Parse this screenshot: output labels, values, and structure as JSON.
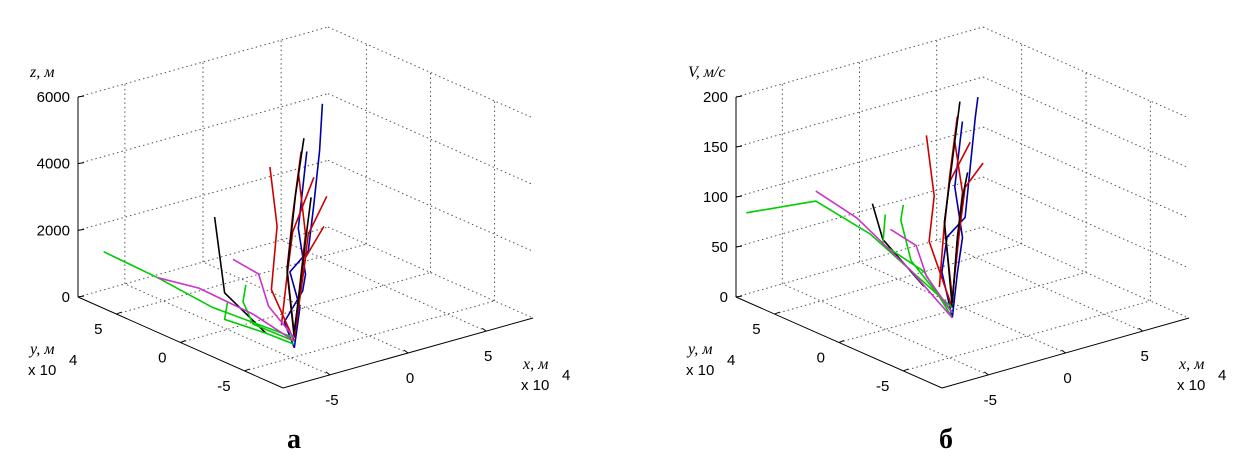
{
  "chart_data": [
    {
      "type": "line",
      "panel_label": "а",
      "zlabel": "z, м",
      "xlabel": "x, м",
      "ylabel": "y, м",
      "x_exponent": "x 10",
      "y_exponent": "x 10",
      "exponent_power": "4",
      "zlim": [
        0,
        6000
      ],
      "xlim": [
        -8,
        8
      ],
      "ylim": [
        -8,
        8
      ],
      "x_units": "x 10^4 m",
      "y_units": "x 10^4 m",
      "z_ticks": [
        "0",
        "2000",
        "4000",
        "6000"
      ],
      "x_ticks": [
        "-5",
        "0",
        "5"
      ],
      "y_ticks": [
        "5",
        "0",
        "-5"
      ],
      "grid": true,
      "series": [
        {
          "color": "#0000aa",
          "points": [
            [
              -4,
              -4,
              0
            ],
            [
              -2,
              -2,
              600
            ],
            [
              -1,
              0,
              1200
            ],
            [
              1,
              1,
              1400
            ],
            [
              3,
              3,
              2200
            ],
            [
              5,
              5,
              3200
            ],
            [
              6,
              6,
              4300
            ]
          ]
        },
        {
          "color": "#0000aa",
          "points": [
            [
              -4,
              -4,
              0
            ],
            [
              -3,
              -2,
              300
            ],
            [
              -1,
              -1,
              800
            ],
            [
              0,
              0,
              1000
            ],
            [
              2,
              3,
              1600
            ],
            [
              5,
              6,
              3000
            ]
          ]
        },
        {
          "color": "#cc0000",
          "points": [
            [
              -4,
              -4,
              400
            ],
            [
              -2,
              -1,
              1600
            ],
            [
              0,
              1,
              2600
            ],
            [
              3,
              4,
              3600
            ]
          ]
        },
        {
          "color": "#cc0000",
          "points": [
            [
              -4,
              -4,
              300
            ],
            [
              -2,
              -2,
              1300
            ],
            [
              0,
              0,
              2200
            ],
            [
              2,
              3,
              3300
            ]
          ]
        },
        {
          "color": "#cc0000",
          "points": [
            [
              -4,
              -3,
              500
            ],
            [
              -2,
              -1,
              1400
            ],
            [
              0,
              1,
              2100
            ],
            [
              3,
              3,
              3000
            ]
          ]
        },
        {
          "color": "#cc0000",
          "points": [
            [
              -4,
              -4,
              200
            ],
            [
              -3,
              -1,
              1100
            ],
            [
              -1,
              1,
              2400
            ],
            [
              1,
              4,
              3400
            ]
          ]
        },
        {
          "color": "#cc0000",
          "points": [
            [
              -4,
              -4,
              400
            ],
            [
              -1,
              -1,
              1200
            ],
            [
              1,
              1,
              1900
            ],
            [
              3,
              2,
              2600
            ]
          ]
        },
        {
          "color": "#cc0000",
          "points": [
            [
              -4,
              -4,
              300
            ],
            [
              -2,
              -2,
              900
            ],
            [
              0,
              0,
              1500
            ],
            [
              2,
              1,
              2000
            ]
          ]
        },
        {
          "color": "#000000",
          "points": [
            [
              -4,
              -4,
              300
            ],
            [
              -2,
              -1,
              1500
            ],
            [
              1,
              2,
              2900
            ],
            [
              4,
              5,
              3700
            ]
          ]
        },
        {
          "color": "#000000",
          "points": [
            [
              -4,
              -4,
              500
            ],
            [
              -2,
              -2,
              1200
            ],
            [
              0,
              0,
              2000
            ],
            [
              2,
              2,
              2700
            ]
          ]
        },
        {
          "color": "#000000",
          "points": [
            [
              -5,
              -3,
              400
            ],
            [
              -6,
              -1,
              1400
            ],
            [
              -5,
              1,
              3200
            ]
          ]
        },
        {
          "color": "#00cc00",
          "points": [
            [
              -4,
              -4,
              300
            ],
            [
              -6,
              0,
              800
            ],
            [
              -7,
              3,
              1300
            ],
            [
              -8,
              6,
              1700
            ]
          ]
        },
        {
          "color": "#00cc00",
          "points": [
            [
              -4,
              -4,
              200
            ],
            [
              -5,
              -2,
              500
            ],
            [
              -4,
              0,
              700
            ],
            [
              -3,
              1,
              900
            ]
          ]
        },
        {
          "color": "#00cc00",
          "points": [
            [
              -4,
              -4,
              100
            ],
            [
              -5,
              -3,
              400
            ],
            [
              -6,
              -1,
              600
            ],
            [
              -5,
              0,
              800
            ]
          ]
        },
        {
          "color": "#cc33cc",
          "points": [
            [
              -4,
              -4,
              200
            ],
            [
              -5,
              -2,
              800
            ],
            [
              -6,
              1,
              1200
            ],
            [
              -7,
              3,
              1300
            ]
          ]
        },
        {
          "color": "#cc33cc",
          "points": [
            [
              -4,
              -4,
              300
            ],
            [
              -4,
              -2,
              900
            ],
            [
              -3,
              0,
              1400
            ],
            [
              -3,
              2,
              1500
            ]
          ]
        }
      ]
    },
    {
      "type": "line",
      "panel_label": "б",
      "zlabel": "V, м/с",
      "xlabel": "x, м",
      "ylabel": "y, м",
      "x_exponent": "x 10",
      "y_exponent": "x 10",
      "exponent_power": "4",
      "zlim": [
        0,
        200
      ],
      "xlim": [
        -8,
        8
      ],
      "ylim": [
        -8,
        8
      ],
      "x_units": "x 10^4 m",
      "y_units": "x 10^4 m",
      "z_ticks": [
        "0",
        "50",
        "100",
        "150",
        "200"
      ],
      "x_ticks": [
        "-5",
        "0",
        "5"
      ],
      "y_ticks": [
        "5",
        "0",
        "-5"
      ],
      "grid": true,
      "series": [
        {
          "color": "#0000aa",
          "points": [
            [
              -4,
              -4,
              30
            ],
            [
              -3,
              -2,
              60
            ],
            [
              -1,
              0,
              75
            ],
            [
              1,
              1,
              80
            ],
            [
              3,
              3,
              110
            ],
            [
              5,
              5,
              140
            ],
            [
              6,
              6,
              150
            ]
          ]
        },
        {
          "color": "#0000aa",
          "points": [
            [
              -4,
              -4,
              30
            ],
            [
              -2,
              -2,
              55
            ],
            [
              0,
              0,
              70
            ],
            [
              2,
              3,
              95
            ],
            [
              5,
              6,
              130
            ]
          ]
        },
        {
          "color": "#cc0000",
          "points": [
            [
              -4,
              -4,
              50
            ],
            [
              -2,
              -1,
              95
            ],
            [
              0,
              1,
              125
            ],
            [
              3,
              4,
              155
            ]
          ]
        },
        {
          "color": "#cc0000",
          "points": [
            [
              -4,
              -4,
              45
            ],
            [
              -2,
              -2,
              90
            ],
            [
              0,
              0,
              115
            ],
            [
              2,
              3,
              140
            ]
          ]
        },
        {
          "color": "#cc0000",
          "points": [
            [
              -4,
              -3,
              55
            ],
            [
              -2,
              -1,
              100
            ],
            [
              0,
              1,
              120
            ],
            [
              3,
              3,
              135
            ]
          ]
        },
        {
          "color": "#cc0000",
          "points": [
            [
              -4,
              -4,
              40
            ],
            [
              -3,
              -1,
              85
            ],
            [
              -1,
              1,
              110
            ],
            [
              1,
              4,
              145
            ]
          ]
        },
        {
          "color": "#cc0000",
          "points": [
            [
              -4,
              -4,
              50
            ],
            [
              -1,
              -1,
              90
            ],
            [
              1,
              1,
              110
            ],
            [
              3,
              2,
              120
            ]
          ]
        },
        {
          "color": "#000000",
          "points": [
            [
              -4,
              -4,
              40
            ],
            [
              -2,
              -1,
              100
            ],
            [
              1,
              2,
              130
            ],
            [
              4,
              5,
              160
            ]
          ]
        },
        {
          "color": "#000000",
          "points": [
            [
              -4,
              -4,
              45
            ],
            [
              -2,
              -2,
              90
            ],
            [
              0,
              0,
              110
            ],
            [
              2,
              2,
              115
            ]
          ]
        },
        {
          "color": "#000000",
          "points": [
            [
              -5,
              -3,
              60
            ],
            [
              -6,
              -1,
              100
            ],
            [
              -5,
              1,
              120
            ]
          ]
        },
        {
          "color": "#00cc00",
          "points": [
            [
              -4,
              -4,
              40
            ],
            [
              -6,
              0,
              100
            ],
            [
              -7,
              3,
              120
            ],
            [
              -9,
              6,
              100
            ]
          ]
        },
        {
          "color": "#00cc00",
          "points": [
            [
              -4,
              -4,
              35
            ],
            [
              -5,
              -2,
              80
            ],
            [
              -4,
              0,
              105
            ],
            [
              -3,
              1,
              110
            ]
          ]
        },
        {
          "color": "#00cc00",
          "points": [
            [
              -4,
              -4,
              30
            ],
            [
              -5,
              -3,
              75
            ],
            [
              -6,
              -1,
              95
            ],
            [
              -5,
              0,
              115
            ]
          ]
        },
        {
          "color": "#cc33cc",
          "points": [
            [
              -4,
              -4,
              30
            ],
            [
              -5,
              -2,
              70
            ],
            [
              -6,
              1,
              110
            ],
            [
              -7,
              3,
              130
            ]
          ]
        },
        {
          "color": "#cc33cc",
          "points": [
            [
              -4,
              -4,
              35
            ],
            [
              -4,
              -2,
              60
            ],
            [
              -3,
              0,
              75
            ],
            [
              -3,
              2,
              80
            ]
          ]
        }
      ]
    }
  ]
}
